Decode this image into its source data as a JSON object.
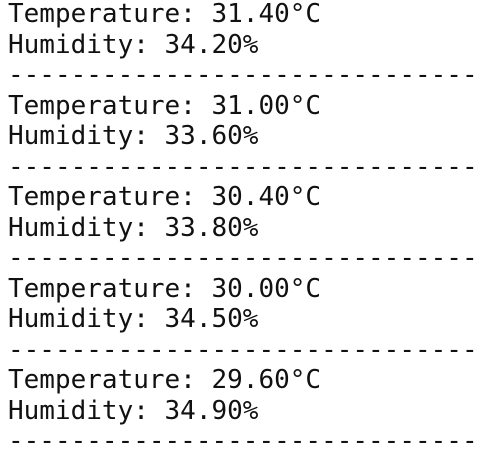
{
  "readings": [
    {
      "temperature": "Temperature: 31.40°C",
      "humidity": "Humidity: 34.20%",
      "separator": "------------------------------"
    },
    {
      "temperature": "Temperature: 31.00°C",
      "humidity": "Humidity: 33.60%",
      "separator": "------------------------------"
    },
    {
      "temperature": "Temperature: 30.40°C",
      "humidity": "Humidity: 33.80%",
      "separator": "------------------------------"
    },
    {
      "temperature": "Temperature: 30.00°C",
      "humidity": "Humidity: 34.50%",
      "separator": "------------------------------"
    },
    {
      "temperature": "Temperature: 29.60°C",
      "humidity": "Humidity: 34.90%",
      "separator": "------------------------------"
    }
  ]
}
